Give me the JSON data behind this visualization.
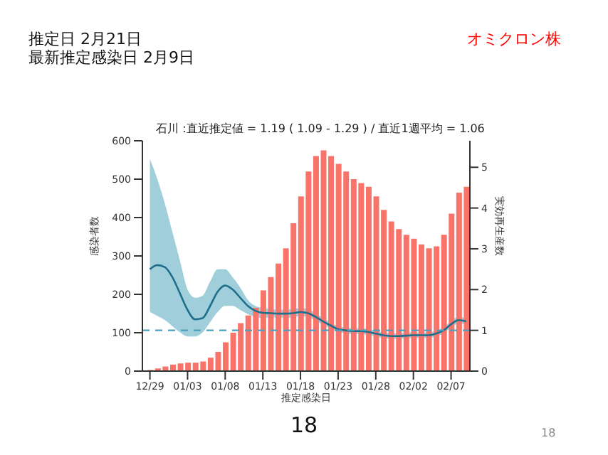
{
  "chart_data": {
    "type": "bar",
    "title": "石川 :直近推定値 = 1.19 ( 1.09 - 1.29 ) / 直近1週平均 = 1.06",
    "xlabel": "推定感染日",
    "ylabel": "感染者数",
    "y2label": "実効再生産数",
    "annotations": [
      "推定日  2月21日",
      "最新推定感染日  2月9日",
      "オミクロン株",
      "18",
      "18"
    ],
    "categories": [
      "12/29",
      null,
      null,
      null,
      null,
      "01/03",
      null,
      null,
      null,
      null,
      "01/08",
      null,
      null,
      null,
      null,
      "01/13",
      null,
      null,
      null,
      null,
      "01/18",
      null,
      null,
      null,
      null,
      "01/23",
      null,
      null,
      null,
      null,
      "01/28",
      null,
      null,
      null,
      null,
      "02/02",
      null,
      null,
      null,
      null,
      "02/07",
      null,
      null
    ],
    "series": [
      {
        "color": "#f8736a",
        "values": [
          3,
          7,
          12,
          17,
          20,
          22,
          22,
          25,
          35,
          50,
          75,
          100,
          125,
          145,
          165,
          210,
          245,
          280,
          320,
          385,
          455,
          520,
          560,
          575,
          560,
          540,
          520,
          500,
          490,
          480,
          455,
          420,
          390,
          370,
          355,
          345,
          330,
          320,
          325,
          355,
          410,
          465,
          480
        ]
      },
      {
        "type": "line",
        "axis": "y2",
        "color": "#1f6e8c",
        "values": [
          2.5,
          2.6,
          2.55,
          2.3,
          1.9,
          1.5,
          1.27,
          1.3,
          1.6,
          1.95,
          2.1,
          2.0,
          1.8,
          1.6,
          1.48,
          1.43,
          1.42,
          1.41,
          1.41,
          1.42,
          1.45,
          1.42,
          1.33,
          1.22,
          1.12,
          1.03,
          1.0,
          0.98,
          0.98,
          0.96,
          0.92,
          0.88,
          0.86,
          0.86,
          0.87,
          0.88,
          0.88,
          0.88,
          0.92,
          1.0,
          1.15,
          1.25,
          1.22
        ],
        "upper": [
          5.2,
          4.7,
          4.1,
          3.4,
          2.7,
          2.0,
          1.8,
          1.85,
          2.2,
          2.5,
          2.5,
          2.3,
          2.05,
          1.75,
          1.6,
          1.55,
          1.52,
          1.51,
          1.51,
          1.52,
          1.55,
          1.52,
          1.42,
          1.3,
          1.2,
          1.1,
          1.07,
          1.05,
          1.05,
          1.03,
          0.99,
          0.95,
          0.93,
          0.93,
          0.94,
          0.95,
          0.95,
          0.95,
          0.99,
          1.07,
          1.23,
          1.33,
          1.3
        ],
        "lower": [
          1.45,
          1.35,
          1.25,
          1.1,
          0.95,
          0.85,
          0.85,
          0.95,
          1.2,
          1.45,
          1.6,
          1.6,
          1.5,
          1.4,
          1.33,
          1.3,
          1.32,
          1.31,
          1.31,
          1.32,
          1.35,
          1.32,
          1.24,
          1.14,
          1.05,
          0.96,
          0.93,
          0.91,
          0.91,
          0.89,
          0.85,
          0.81,
          0.79,
          0.79,
          0.8,
          0.81,
          0.81,
          0.81,
          0.85,
          0.93,
          1.07,
          1.17,
          1.14
        ]
      }
    ],
    "ylim": [
      0,
      600
    ],
    "yticks": [
      0,
      100,
      200,
      300,
      400,
      500,
      600
    ],
    "y2lim": [
      0,
      5.65
    ],
    "y2ticks": [
      0,
      1,
      2,
      3,
      4,
      5
    ],
    "ref_lines": [
      {
        "axis": "y2",
        "value": 1,
        "color": "#4a9fc0",
        "line_style": "dashed"
      }
    ],
    "grid": false,
    "legend": false
  }
}
